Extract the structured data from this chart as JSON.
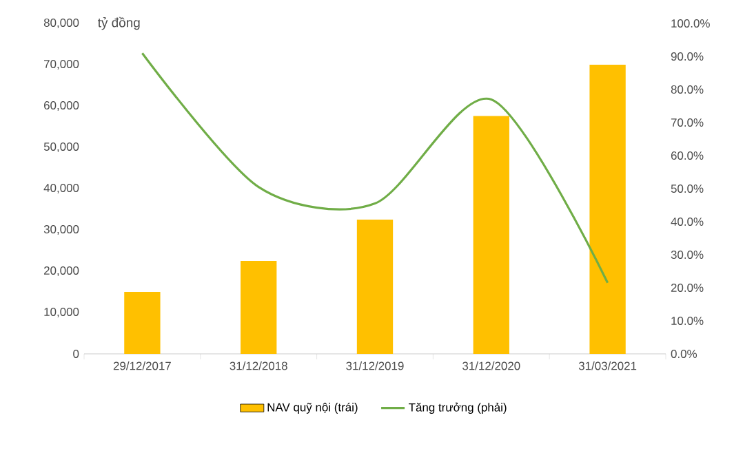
{
  "chart_data": {
    "type": "bar",
    "ylabel": "tỷ đồng",
    "categories": [
      "29/12/2017",
      "31/12/2018",
      "31/12/2019",
      "31/12/2020",
      "31/03/2021"
    ],
    "series": [
      {
        "name": "NAV quỹ nội (trái)",
        "color": "#ffc000",
        "values": [
          15000,
          22500,
          32500,
          57600,
          70000
        ]
      },
      {
        "name": "Tăng trưởng (phải)",
        "type": "line",
        "axis": "y2",
        "color": "#70ad47",
        "values": [
          91,
          50.5,
          45.5,
          77,
          21.5
        ]
      }
    ],
    "ylim": [
      0,
      80000
    ],
    "yticks": [
      {
        "value": 0,
        "label": "0"
      },
      {
        "value": 10000,
        "label": "10,000"
      },
      {
        "value": 20000,
        "label": "20,000"
      },
      {
        "value": 30000,
        "label": "30,000"
      },
      {
        "value": 40000,
        "label": "40,000"
      },
      {
        "value": 50000,
        "label": "50,000"
      },
      {
        "value": 60000,
        "label": "60,000"
      },
      {
        "value": 70000,
        "label": "70,000"
      },
      {
        "value": 80000,
        "label": "80,000"
      }
    ],
    "y2lim": [
      0,
      100
    ],
    "y2ticks": [
      {
        "value": 0,
        "label": "0.0%"
      },
      {
        "value": 10,
        "label": "10.0%"
      },
      {
        "value": 20,
        "label": "20.0%"
      },
      {
        "value": 30,
        "label": "30.0%"
      },
      {
        "value": 40,
        "label": "40.0%"
      },
      {
        "value": 50,
        "label": "50.0%"
      },
      {
        "value": 60,
        "label": "60.0%"
      },
      {
        "value": 70,
        "label": "70.0%"
      },
      {
        "value": 80,
        "label": "80.0%"
      },
      {
        "value": 90,
        "label": "90.0%"
      },
      {
        "value": 100,
        "label": "100.0%"
      }
    ],
    "legend": "bottom"
  }
}
